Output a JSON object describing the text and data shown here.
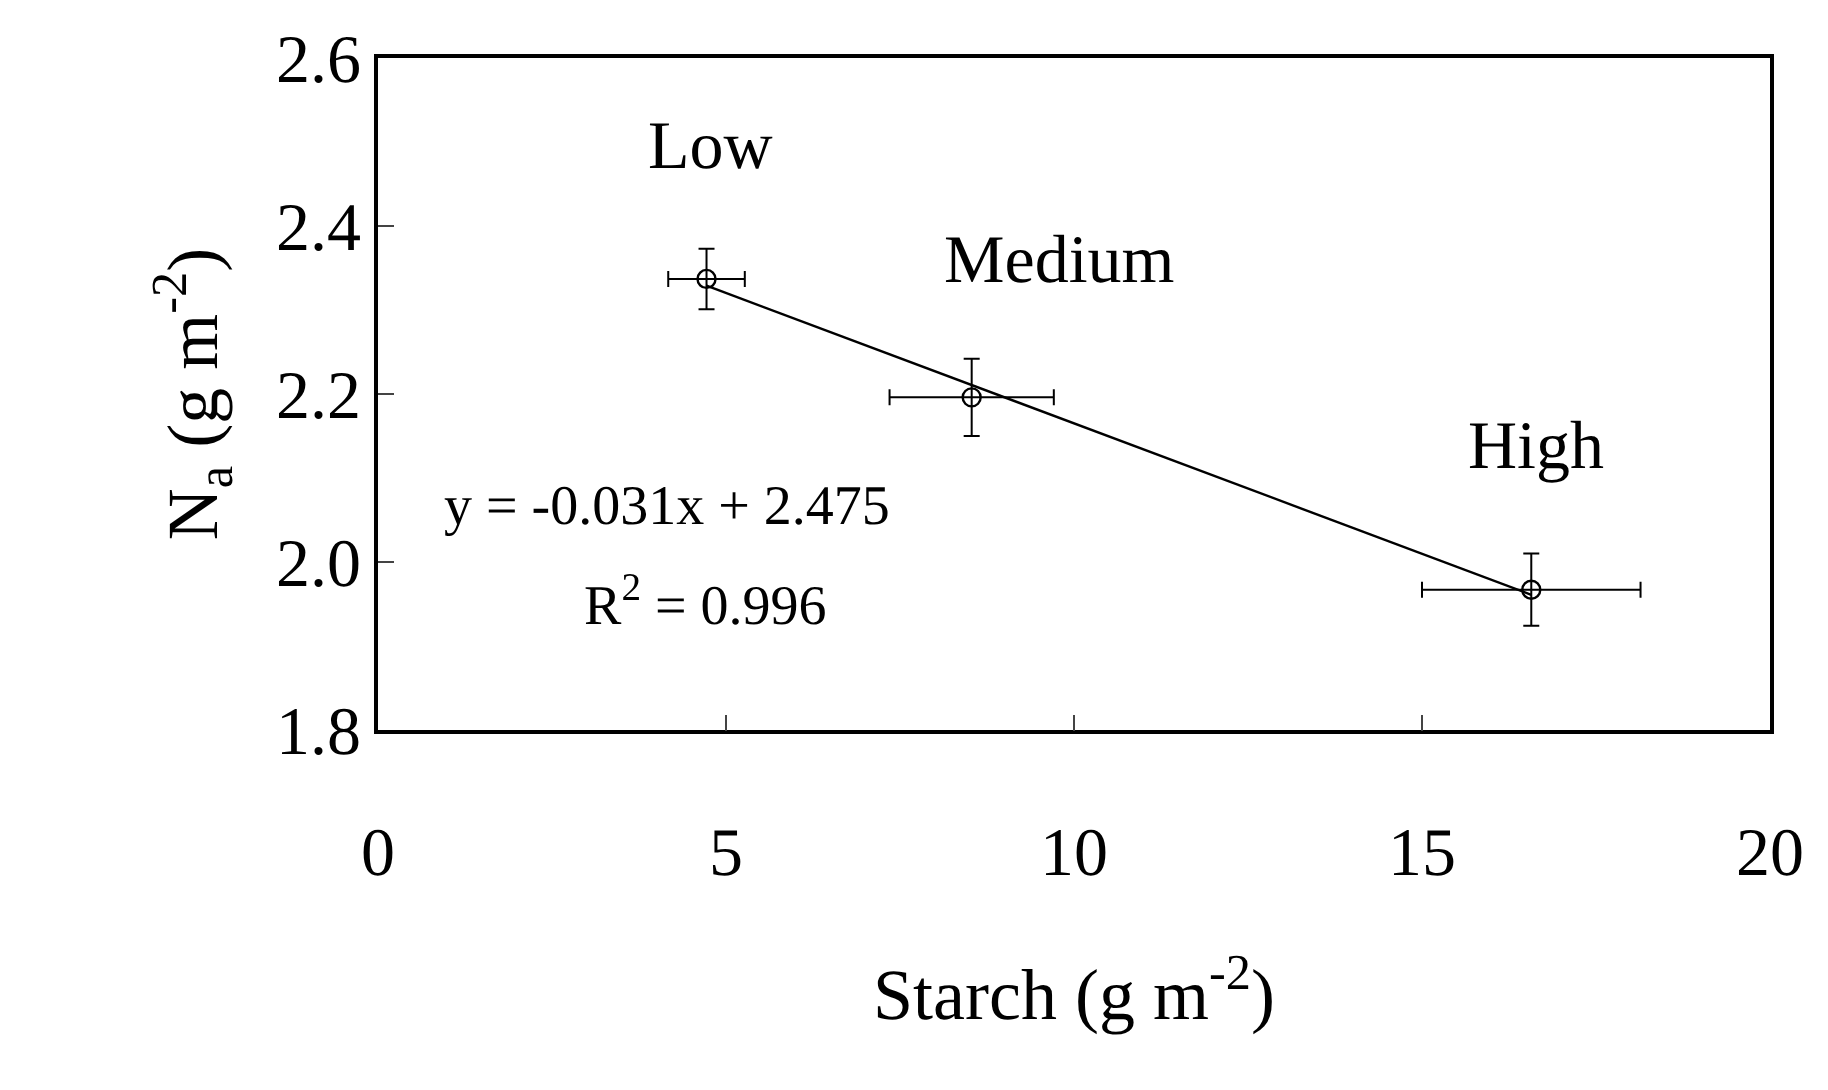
{
  "chart_data": {
    "type": "scatter",
    "xlabel": "Starch (g m$^{-2}$)",
    "ylabel": "N$_{a}$ (g m$^{-2}$)",
    "xlim": [
      0,
      20
    ],
    "xticks": [
      0,
      5,
      10,
      15,
      20
    ],
    "ylim": [
      1.8,
      2.6
    ],
    "yticks": [
      1.8,
      {
        "value": 2,
        "label": "2.0"
      },
      2.2,
      2.4,
      2.6
    ],
    "marker": "circle",
    "series": [
      {
        "color": "#000000",
        "x": [
          4.72,
          8.53,
          16.57
        ],
        "values": [
          2.337,
          2.196,
          1.967
        ],
        "errors": [
          0.036,
          0.046,
          0.043
        ],
        "xerrors": [
          0.55,
          1.18,
          1.57
        ]
      },
      {
        "type": "line",
        "color": "#000000",
        "x": [
          4.72,
          16.57
        ],
        "values": [
          2.329,
          1.961
        ],
        "marker": "none",
        "line_style": "solid"
      }
    ],
    "annotations": [
      {
        "text": "Low",
        "x": 4.72,
        "y": 2.337
      },
      {
        "text": "Medium",
        "x": 8.53,
        "y": 2.196
      },
      {
        "text": "High",
        "x": 16.57,
        "y": 1.967
      },
      "y = -0.031x + 2.475",
      "R$^{2}$ = 0.996"
    ]
  }
}
